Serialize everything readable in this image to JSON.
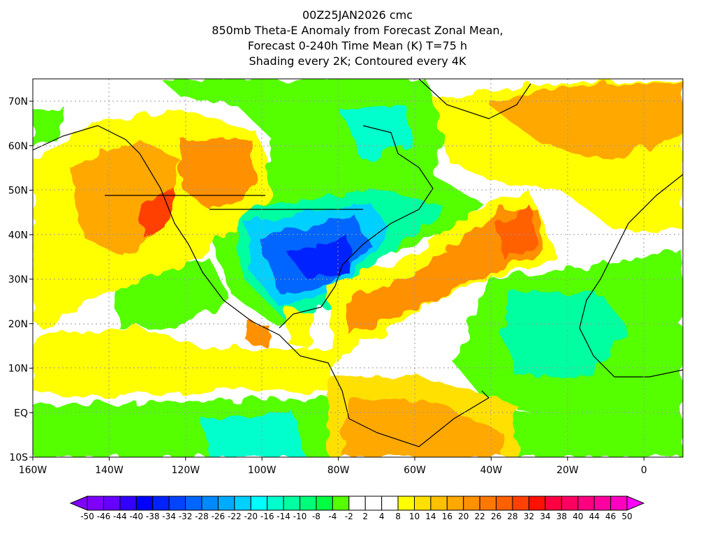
{
  "title": {
    "line1": "00Z25JAN2026 cmc",
    "line2": "850mb Theta-E Anomaly from Forecast Zonal Mean,",
    "line3": "Forecast 0-240h Time Mean (K) T=75 h",
    "line4": "Shading every 2K; Contoured every 4K"
  },
  "axes": {
    "lat_labels": [
      "70N",
      "60N",
      "50N",
      "40N",
      "30N",
      "20N",
      "10N",
      "EQ",
      "10S"
    ],
    "lon_labels": [
      "160W",
      "140W",
      "120W",
      "100W",
      "80W",
      "60W",
      "40W",
      "20W",
      "0"
    ]
  },
  "colorbar": {
    "labels": [
      "-50",
      "-46",
      "-44",
      "-40",
      "-38",
      "-34",
      "-32",
      "-28",
      "-26",
      "-22",
      "-20",
      "-16",
      "-14",
      "-10",
      "-8",
      "-4",
      "-2",
      "2",
      "4",
      "8",
      "10",
      "14",
      "16",
      "20",
      "22",
      "26",
      "28",
      "32",
      "34",
      "38",
      "40",
      "44",
      "46",
      "50"
    ],
    "colors": [
      "#7f00ff",
      "#6600ff",
      "#3300ff",
      "#0000ff",
      "#0022ff",
      "#0044ff",
      "#0066ff",
      "#0088ff",
      "#00aaff",
      "#00d0ff",
      "#00ffff",
      "#00ffcc",
      "#00ffa0",
      "#00ff78",
      "#00ff40",
      "#55ff00",
      "#ffffff",
      "#ffffff",
      "#ffffff",
      "#ffff00",
      "#ffe000",
      "#ffc000",
      "#ffa800",
      "#ff9000",
      "#ff7800",
      "#ff6000",
      "#ff4000",
      "#ff1000",
      "#ff0040",
      "#ff0060",
      "#ff0080",
      "#ff00a0",
      "#ff00c0"
    ],
    "under_color": "#8000ff",
    "over_color": "#ff00ff"
  }
}
